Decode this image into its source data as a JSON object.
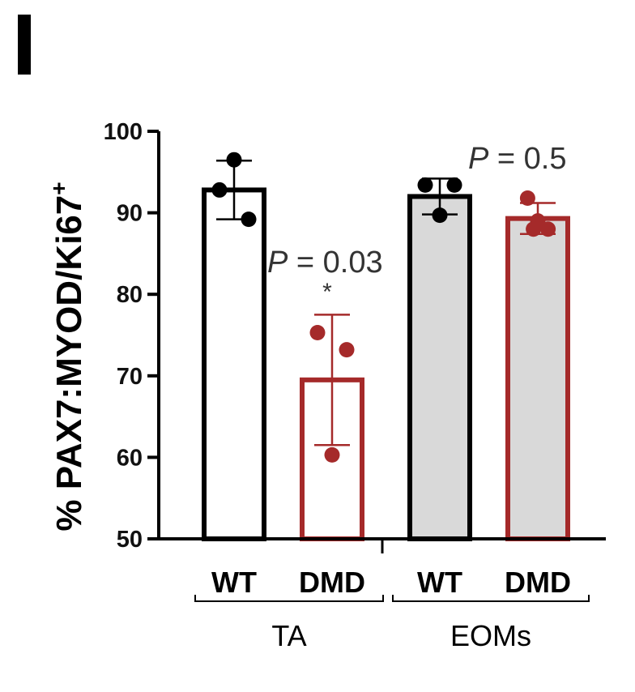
{
  "panel": {
    "letter": "I"
  },
  "chart_data": {
    "type": "bar",
    "ylabel": "% PAX7:MYOD/Ki67",
    "ylabel_sup": "+",
    "ylim": [
      50,
      100
    ],
    "yticks": [
      50,
      60,
      70,
      80,
      90,
      100
    ],
    "categories": [
      "WT",
      "DMD",
      "WT",
      "DMD"
    ],
    "groups": [
      {
        "label": "TA",
        "categories": [
          "WT",
          "DMD"
        ]
      },
      {
        "label": "EOMs",
        "categories": [
          "WT",
          "DMD"
        ]
      }
    ],
    "bars": [
      {
        "group": "TA",
        "category": "WT",
        "mean": 92.8,
        "sd": 3.6,
        "points": [
          96.5,
          92.8,
          89.2
        ],
        "fill": "#ffffff",
        "stroke": "#000000"
      },
      {
        "group": "TA",
        "category": "DMD",
        "mean": 69.5,
        "sd": 8.0,
        "points": [
          75.3,
          73.2,
          60.3
        ],
        "fill": "#ffffff",
        "stroke": "#a52a2a"
      },
      {
        "group": "EOMs",
        "category": "WT",
        "mean": 92.0,
        "sd": 2.2,
        "points": [
          93.4,
          93.4,
          89.7
        ],
        "fill": "#d9d9d9",
        "stroke": "#000000"
      },
      {
        "group": "EOMs",
        "category": "DMD",
        "mean": 89.3,
        "sd": 1.9,
        "points": [
          91.8,
          89.0,
          88.0,
          88.0
        ],
        "fill": "#d9d9d9",
        "stroke": "#a52a2a"
      }
    ],
    "annotations": [
      {
        "text_prefix": "P",
        "text": " = 0.03",
        "star": "*",
        "near": "TA-DMD"
      },
      {
        "text_prefix": "P",
        "text": " = 0.5",
        "near": "EOMs"
      }
    ]
  }
}
